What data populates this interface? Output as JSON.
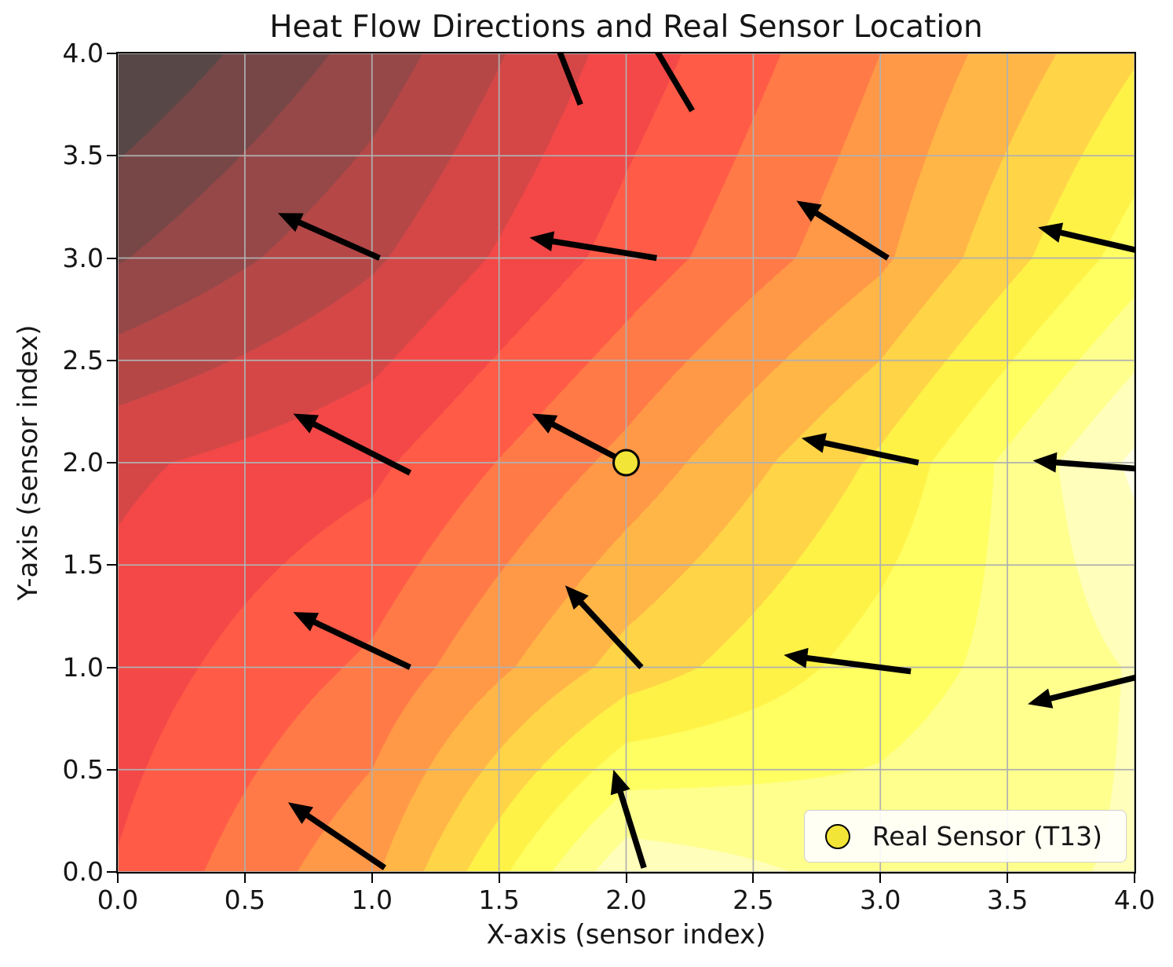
{
  "title": "Heat Flow Directions and Real Sensor Location",
  "axes": {
    "x_label": "X-axis (sensor index)",
    "y_label": "Y-axis (sensor index)",
    "x_ticks": [
      "0.0",
      "0.5",
      "1.0",
      "1.5",
      "2.0",
      "2.5",
      "3.0",
      "3.5",
      "4.0"
    ],
    "y_ticks": [
      "0.0",
      "0.5",
      "1.0",
      "1.5",
      "2.0",
      "2.5",
      "3.0",
      "3.5",
      "4.0"
    ],
    "x_range": [
      0,
      4
    ],
    "y_range": [
      0,
      4
    ]
  },
  "legend": {
    "items": [
      {
        "marker": "circle",
        "marker_fill": "#f2e537",
        "marker_edge": "#000000",
        "label": "Real Sensor (T13)"
      }
    ]
  },
  "colors": {
    "background": "#ffffff",
    "grid": "#b0b0b0",
    "arrow": "#000000",
    "sensor_fill": "#f2e537",
    "axis": "#000000",
    "text": "#161616",
    "legend_border": "#cfcfcf"
  },
  "chart_data": {
    "type": "heatmap",
    "subtype": "filled-contour-with-quiver",
    "title": "Heat Flow Directions and Real Sensor Location",
    "xlabel": "X-axis (sensor index)",
    "ylabel": "Y-axis (sensor index)",
    "x_range": [
      0,
      4
    ],
    "y_range": [
      0,
      4
    ],
    "grid": true,
    "grid_interval": 0.5,
    "colormap": "hot-reversed",
    "colormap_alpha": 0.72,
    "contour_levels": 16,
    "temperature_field_normalized": {
      "orientation": "rows listed from y=0 (bottom) to y=4 (top), columns x=0..4; 1.0 = hottest (darkest), 0.0 = coolest (white)",
      "rows_y0_to_y4": [
        [
          0.62,
          0.45,
          0.08,
          0.15,
          0.12
        ],
        [
          0.66,
          0.55,
          0.35,
          0.22,
          0.12
        ],
        [
          0.7,
          0.64,
          0.48,
          0.3,
          0.05
        ],
        [
          0.88,
          0.76,
          0.6,
          0.45,
          0.22
        ],
        [
          1.0,
          0.85,
          0.66,
          0.5,
          0.32
        ]
      ]
    },
    "quiver_arrows": [
      {
        "x": 1.05,
        "y": 0.02,
        "u": -0.38,
        "v": 0.32
      },
      {
        "x": 2.07,
        "y": 0.02,
        "u": -0.12,
        "v": 0.48
      },
      {
        "x": 1.15,
        "y": 1.0,
        "u": -0.46,
        "v": 0.27
      },
      {
        "x": 2.06,
        "y": 1.0,
        "u": -0.3,
        "v": 0.4
      },
      {
        "x": 3.12,
        "y": 0.98,
        "u": -0.5,
        "v": 0.08
      },
      {
        "x": 4.1,
        "y": 0.98,
        "u": -0.52,
        "v": -0.16
      },
      {
        "x": 1.15,
        "y": 1.95,
        "u": -0.46,
        "v": 0.29
      },
      {
        "x": 2.0,
        "y": 2.0,
        "u": -0.37,
        "v": 0.24
      },
      {
        "x": 3.15,
        "y": 2.0,
        "u": -0.46,
        "v": 0.12
      },
      {
        "x": 4.12,
        "y": 1.96,
        "u": -0.52,
        "v": 0.05
      },
      {
        "x": 1.03,
        "y": 3.0,
        "u": -0.4,
        "v": 0.22
      },
      {
        "x": 2.12,
        "y": 3.0,
        "u": -0.5,
        "v": 0.1
      },
      {
        "x": 3.03,
        "y": 3.0,
        "u": -0.36,
        "v": 0.28
      },
      {
        "x": 4.14,
        "y": 3.0,
        "u": -0.52,
        "v": 0.15
      },
      {
        "x": 1.82,
        "y": 3.75,
        "u": -0.12,
        "v": 0.38
      },
      {
        "x": 2.26,
        "y": 3.72,
        "u": -0.2,
        "v": 0.42
      }
    ],
    "sensor_marker": {
      "x": 2,
      "y": 2,
      "label": "Real Sensor (T13)"
    }
  }
}
